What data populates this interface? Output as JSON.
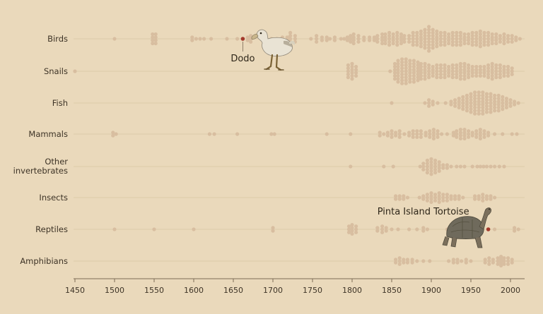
{
  "chart_data": {
    "type": "scatter",
    "title": "",
    "xlabel": "",
    "ylabel": "",
    "xlim": [
      1450,
      2015
    ],
    "x_ticks": [
      1450,
      1500,
      1550,
      1600,
      1650,
      1700,
      1750,
      1800,
      1850,
      1900,
      1950,
      2000
    ],
    "grid": false,
    "colors": {
      "background": "#ead9bb",
      "dot": "#d8bea0",
      "highlight": "#a3392b",
      "row_line": "#dccaaa"
    },
    "categories": [
      "Birds",
      "Snails",
      "Fish",
      "Mammals",
      "Other invertebrates",
      "Insects",
      "Reptiles",
      "Amphibians"
    ],
    "category_lines": [
      [
        "Birds"
      ],
      [
        "Snails"
      ],
      [
        "Fish"
      ],
      [
        "Mammals"
      ],
      [
        "Other",
        "invertebrates"
      ],
      [
        "Insects"
      ],
      [
        "Reptiles"
      ],
      [
        "Amphibians"
      ]
    ],
    "series": [
      {
        "values": [
          [
            1500,
            1
          ],
          [
            1548,
            4
          ],
          [
            1552,
            4
          ],
          [
            1598,
            2
          ],
          [
            1603,
            1
          ],
          [
            1608,
            1
          ],
          [
            1613,
            1
          ],
          [
            1622,
            1
          ],
          [
            1642,
            1
          ],
          [
            1655,
            1
          ],
          [
            1668,
            2
          ],
          [
            1672,
            3
          ],
          [
            1698,
            1
          ],
          [
            1705,
            1
          ],
          [
            1712,
            2
          ],
          [
            1718,
            2
          ],
          [
            1722,
            5
          ],
          [
            1728,
            3
          ],
          [
            1748,
            1
          ],
          [
            1755,
            3
          ],
          [
            1762,
            2
          ],
          [
            1768,
            2
          ],
          [
            1772,
            1
          ],
          [
            1778,
            2
          ],
          [
            1786,
            1
          ],
          [
            1790,
            1
          ],
          [
            1794,
            2
          ],
          [
            1798,
            3
          ],
          [
            1802,
            4
          ],
          [
            1808,
            3
          ],
          [
            1815,
            2
          ],
          [
            1822,
            2
          ],
          [
            1828,
            2
          ],
          [
            1832,
            3
          ],
          [
            1838,
            4
          ],
          [
            1842,
            4
          ],
          [
            1847,
            5
          ],
          [
            1852,
            4
          ],
          [
            1857,
            5
          ],
          [
            1862,
            4
          ],
          [
            1866,
            3
          ],
          [
            1872,
            3
          ],
          [
            1877,
            5
          ],
          [
            1882,
            5
          ],
          [
            1887,
            6
          ],
          [
            1892,
            7
          ],
          [
            1897,
            9
          ],
          [
            1902,
            7
          ],
          [
            1907,
            6
          ],
          [
            1912,
            5
          ],
          [
            1917,
            5
          ],
          [
            1922,
            4
          ],
          [
            1927,
            5
          ],
          [
            1932,
            5
          ],
          [
            1937,
            5
          ],
          [
            1942,
            4
          ],
          [
            1947,
            4
          ],
          [
            1952,
            5
          ],
          [
            1957,
            5
          ],
          [
            1962,
            6
          ],
          [
            1967,
            5
          ],
          [
            1972,
            5
          ],
          [
            1977,
            4
          ],
          [
            1982,
            4
          ],
          [
            1987,
            3
          ],
          [
            1992,
            4
          ],
          [
            1997,
            3
          ],
          [
            2002,
            3
          ],
          [
            2007,
            2
          ],
          [
            2012,
            1
          ]
        ]
      },
      {
        "values": [
          [
            1450,
            1
          ],
          [
            1795,
            5
          ],
          [
            1800,
            6
          ],
          [
            1805,
            4
          ],
          [
            1848,
            1
          ],
          [
            1854,
            6
          ],
          [
            1858,
            8
          ],
          [
            1863,
            9
          ],
          [
            1868,
            9
          ],
          [
            1873,
            8
          ],
          [
            1878,
            8
          ],
          [
            1883,
            7
          ],
          [
            1887,
            6
          ],
          [
            1892,
            6
          ],
          [
            1897,
            5
          ],
          [
            1902,
            4
          ],
          [
            1907,
            5
          ],
          [
            1912,
            5
          ],
          [
            1917,
            5
          ],
          [
            1922,
            4
          ],
          [
            1927,
            5
          ],
          [
            1932,
            5
          ],
          [
            1937,
            6
          ],
          [
            1942,
            6
          ],
          [
            1947,
            5
          ],
          [
            1952,
            4
          ],
          [
            1957,
            4
          ],
          [
            1962,
            4
          ],
          [
            1967,
            4
          ],
          [
            1972,
            5
          ],
          [
            1977,
            6
          ],
          [
            1982,
            5
          ],
          [
            1987,
            5
          ],
          [
            1992,
            4
          ],
          [
            1997,
            4
          ],
          [
            2002,
            3
          ]
        ]
      },
      {
        "values": [
          [
            1850,
            1
          ],
          [
            1892,
            1
          ],
          [
            1897,
            3
          ],
          [
            1902,
            2
          ],
          [
            1908,
            1
          ],
          [
            1918,
            1
          ],
          [
            1925,
            2
          ],
          [
            1930,
            3
          ],
          [
            1935,
            4
          ],
          [
            1940,
            5
          ],
          [
            1945,
            6
          ],
          [
            1950,
            7
          ],
          [
            1955,
            8
          ],
          [
            1960,
            8
          ],
          [
            1965,
            8
          ],
          [
            1970,
            7
          ],
          [
            1975,
            7
          ],
          [
            1980,
            6
          ],
          [
            1985,
            6
          ],
          [
            1990,
            5
          ],
          [
            1995,
            4
          ],
          [
            2000,
            3
          ],
          [
            2005,
            2
          ],
          [
            2010,
            1
          ]
        ]
      },
      {
        "values": [
          [
            1498,
            2
          ],
          [
            1502,
            1
          ],
          [
            1620,
            1
          ],
          [
            1626,
            1
          ],
          [
            1655,
            1
          ],
          [
            1698,
            1
          ],
          [
            1702,
            1
          ],
          [
            1768,
            1
          ],
          [
            1798,
            1
          ],
          [
            1835,
            2
          ],
          [
            1840,
            1
          ],
          [
            1845,
            2
          ],
          [
            1850,
            3
          ],
          [
            1855,
            2
          ],
          [
            1860,
            3
          ],
          [
            1866,
            1
          ],
          [
            1872,
            2
          ],
          [
            1877,
            3
          ],
          [
            1882,
            3
          ],
          [
            1887,
            3
          ],
          [
            1893,
            2
          ],
          [
            1898,
            3
          ],
          [
            1903,
            4
          ],
          [
            1908,
            3
          ],
          [
            1913,
            1
          ],
          [
            1920,
            1
          ],
          [
            1928,
            2
          ],
          [
            1932,
            3
          ],
          [
            1937,
            4
          ],
          [
            1942,
            4
          ],
          [
            1947,
            3
          ],
          [
            1952,
            2
          ],
          [
            1957,
            3
          ],
          [
            1962,
            4
          ],
          [
            1967,
            3
          ],
          [
            1972,
            2
          ],
          [
            1980,
            1
          ],
          [
            1990,
            1
          ],
          [
            2002,
            1
          ],
          [
            2008,
            1
          ]
        ]
      },
      {
        "values": [
          [
            1798,
            1
          ],
          [
            1840,
            1
          ],
          [
            1852,
            1
          ],
          [
            1886,
            1
          ],
          [
            1890,
            3
          ],
          [
            1895,
            5
          ],
          [
            1900,
            6
          ],
          [
            1905,
            5
          ],
          [
            1910,
            4
          ],
          [
            1915,
            2
          ],
          [
            1920,
            2
          ],
          [
            1925,
            1
          ],
          [
            1932,
            1
          ],
          [
            1937,
            1
          ],
          [
            1942,
            1
          ],
          [
            1952,
            1
          ],
          [
            1958,
            1
          ],
          [
            1962,
            1
          ],
          [
            1966,
            1
          ],
          [
            1970,
            1
          ],
          [
            1975,
            1
          ],
          [
            1980,
            1
          ],
          [
            1986,
            1
          ],
          [
            1992,
            1
          ]
        ]
      },
      {
        "values": [
          [
            1855,
            2
          ],
          [
            1860,
            2
          ],
          [
            1865,
            2
          ],
          [
            1870,
            1
          ],
          [
            1885,
            1
          ],
          [
            1890,
            2
          ],
          [
            1895,
            3
          ],
          [
            1900,
            4
          ],
          [
            1905,
            3
          ],
          [
            1910,
            4
          ],
          [
            1915,
            3
          ],
          [
            1920,
            3
          ],
          [
            1925,
            2
          ],
          [
            1930,
            2
          ],
          [
            1935,
            2
          ],
          [
            1940,
            1
          ],
          [
            1955,
            2
          ],
          [
            1960,
            2
          ],
          [
            1965,
            3
          ],
          [
            1970,
            2
          ],
          [
            1975,
            2
          ],
          [
            1980,
            1
          ]
        ]
      },
      {
        "values": [
          [
            1500,
            1
          ],
          [
            1550,
            1
          ],
          [
            1600,
            1
          ],
          [
            1700,
            2
          ],
          [
            1796,
            3
          ],
          [
            1800,
            4
          ],
          [
            1805,
            3
          ],
          [
            1832,
            2
          ],
          [
            1838,
            3
          ],
          [
            1843,
            2
          ],
          [
            1850,
            1
          ],
          [
            1858,
            1
          ],
          [
            1872,
            1
          ],
          [
            1882,
            1
          ],
          [
            1890,
            2
          ],
          [
            1895,
            1
          ],
          [
            1920,
            1
          ],
          [
            1940,
            1
          ],
          [
            1965,
            1
          ],
          [
            1980,
            1
          ],
          [
            2005,
            2
          ],
          [
            2010,
            1
          ]
        ]
      },
      {
        "values": [
          [
            1855,
            2
          ],
          [
            1860,
            3
          ],
          [
            1865,
            2
          ],
          [
            1870,
            2
          ],
          [
            1876,
            2
          ],
          [
            1882,
            1
          ],
          [
            1890,
            1
          ],
          [
            1898,
            1
          ],
          [
            1922,
            1
          ],
          [
            1928,
            2
          ],
          [
            1933,
            2
          ],
          [
            1938,
            1
          ],
          [
            1944,
            2
          ],
          [
            1950,
            1
          ],
          [
            1968,
            2
          ],
          [
            1973,
            3
          ],
          [
            1978,
            2
          ],
          [
            1984,
            3
          ],
          [
            1988,
            4
          ],
          [
            1992,
            3
          ],
          [
            1997,
            3
          ],
          [
            2002,
            2
          ]
        ]
      }
    ],
    "highlights": [
      {
        "label": "Dodo",
        "category": "Birds",
        "x": 1662
      },
      {
        "label": "Pinta Island Tortoise",
        "category": "Reptiles",
        "x": 1972
      }
    ]
  }
}
